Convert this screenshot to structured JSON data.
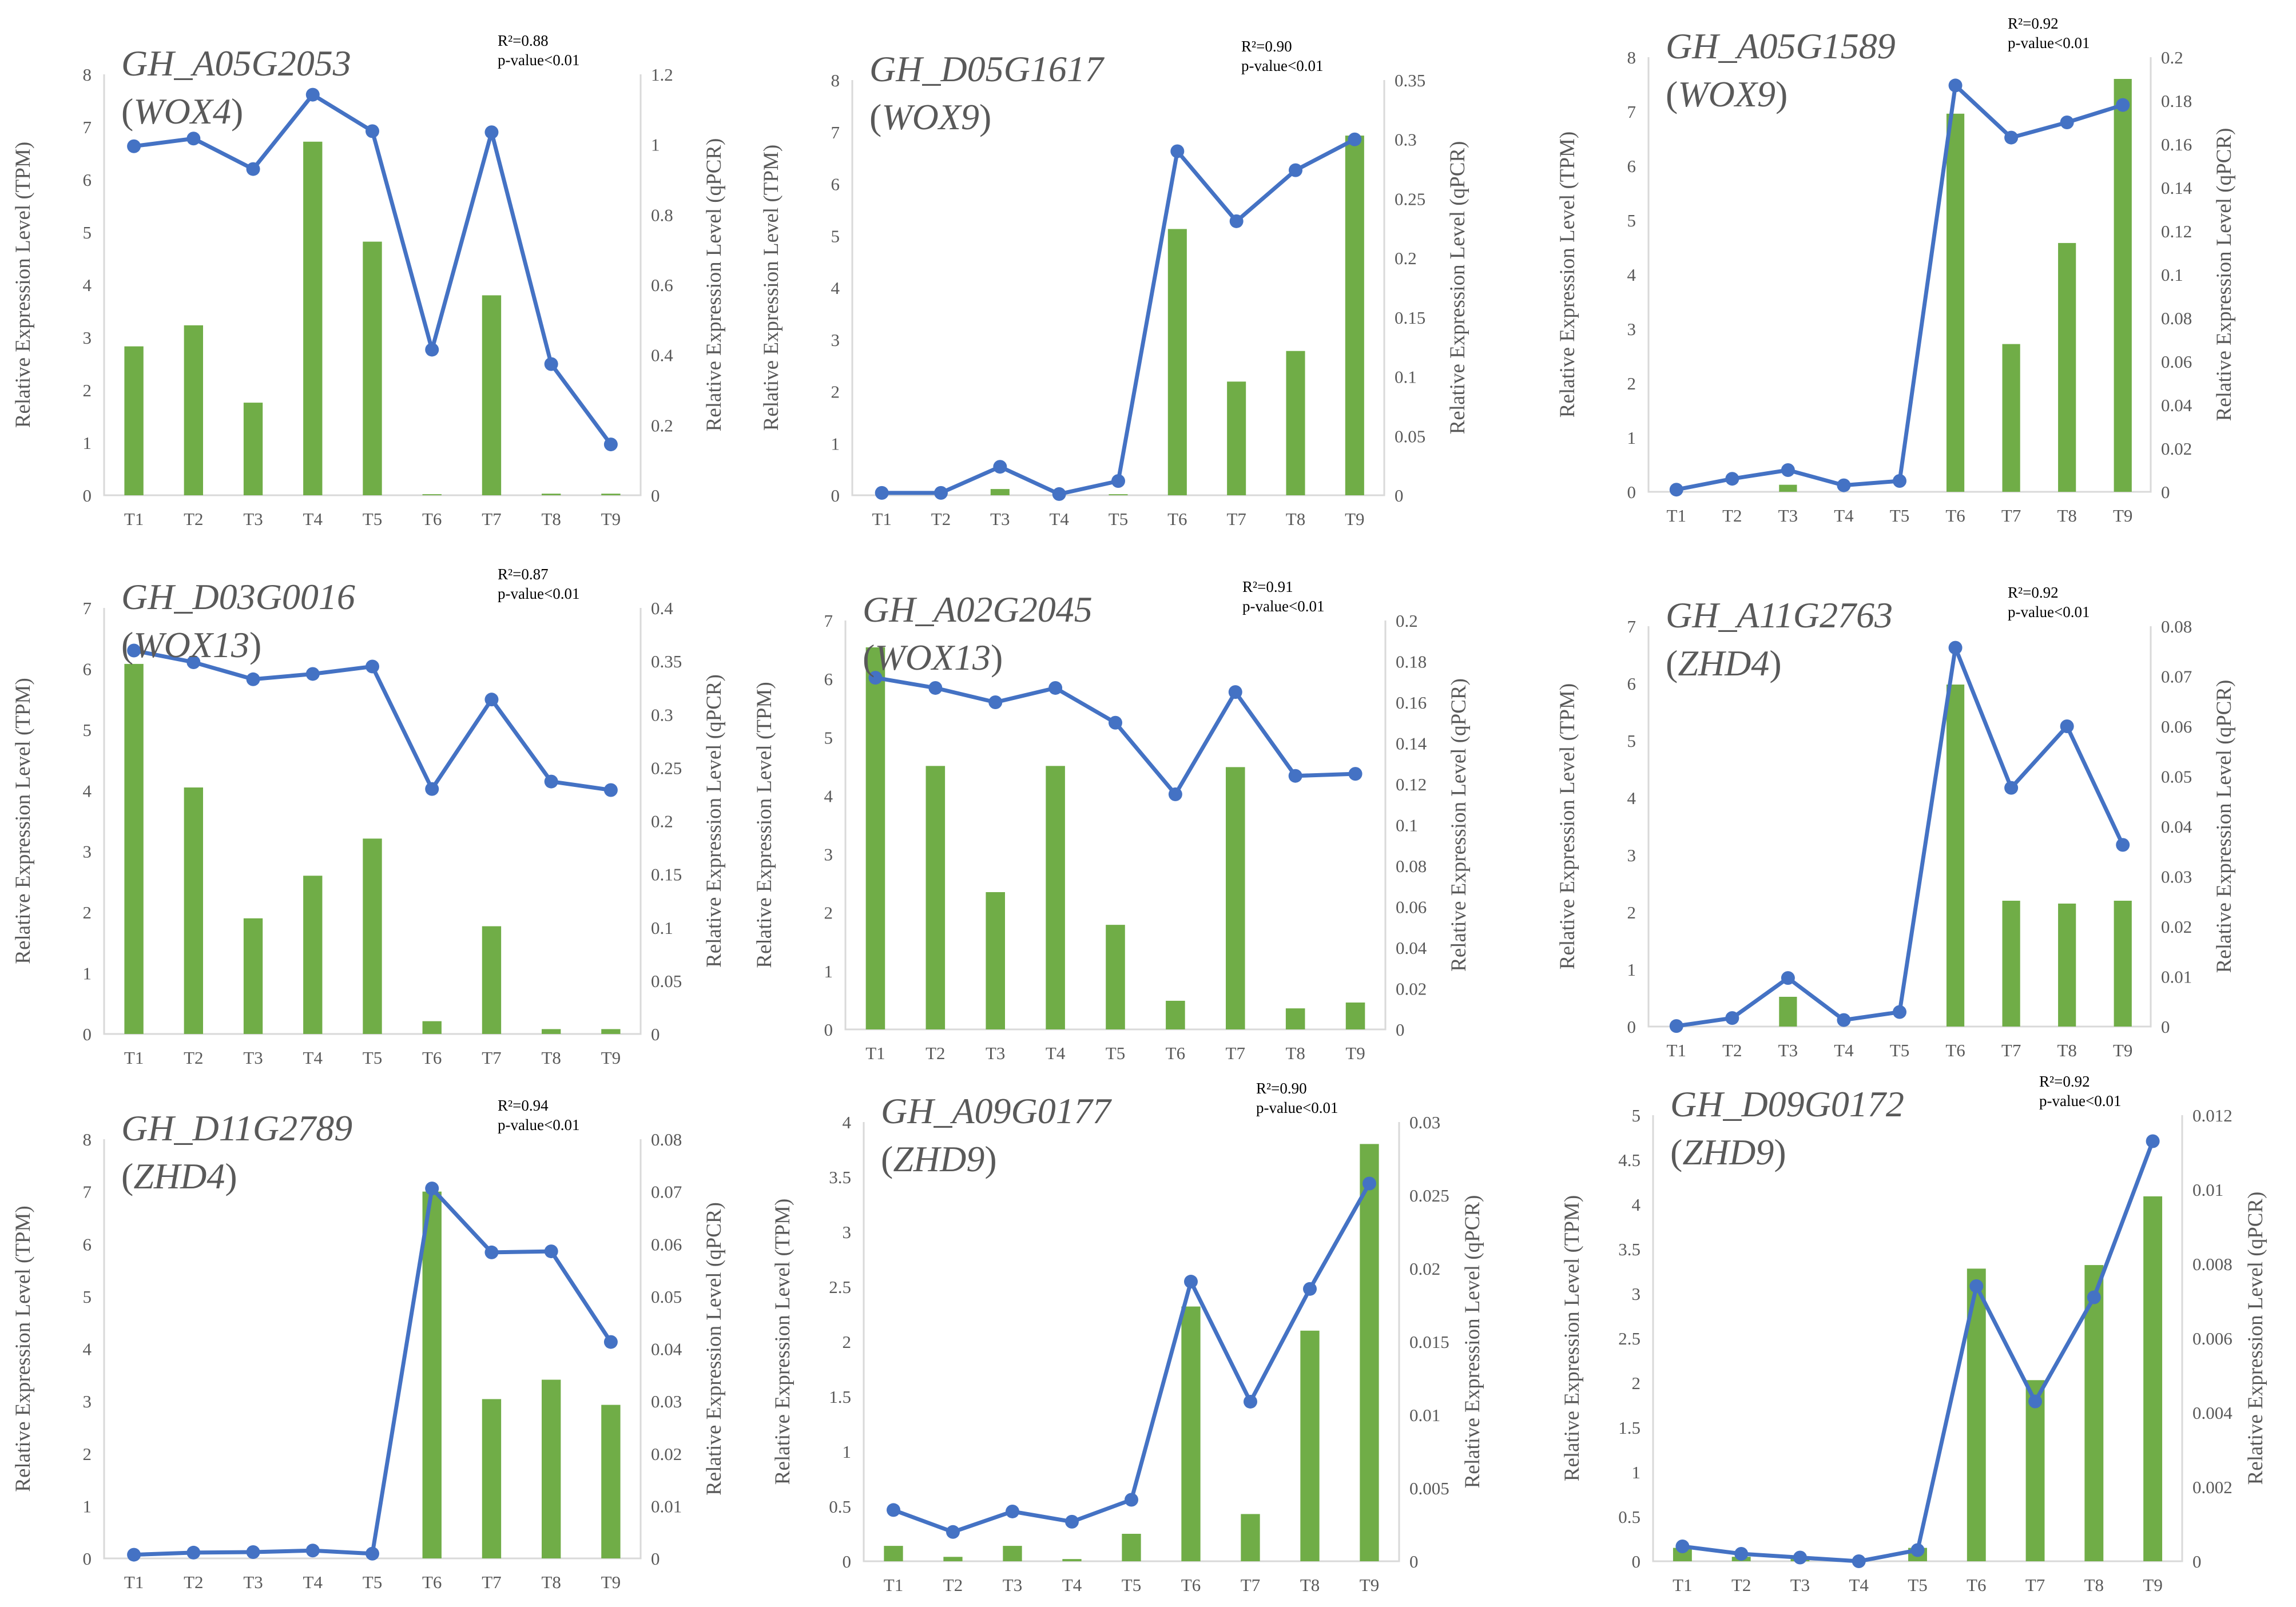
{
  "colors": {
    "bar": "#70ad47",
    "line": "#4472c4",
    "axis": "#d9d9d9",
    "text": "#595959"
  },
  "chart_data": [
    {
      "type": "bar+line",
      "gene": "GH_A05G2053",
      "alias": "WOX4",
      "alias_open": "(",
      "alias_close": ")",
      "r2_label": "R²=0.88",
      "p_label": "p-value<0.01",
      "categories": [
        "T1",
        "T2",
        "T3",
        "T4",
        "T5",
        "T6",
        "T7",
        "T8",
        "T9"
      ],
      "series": [
        {
          "name": "TPM",
          "axis": "left",
          "kind": "bar",
          "values": [
            2.83,
            3.23,
            1.76,
            6.72,
            4.82,
            0.02,
            3.8,
            0.03,
            0.03
          ]
        },
        {
          "name": "qPCR",
          "axis": "right",
          "kind": "line",
          "values": [
            0.995,
            1.017,
            0.93,
            1.142,
            1.038,
            0.415,
            1.035,
            0.374,
            0.145
          ]
        }
      ],
      "left_axis": {
        "label": "Relative Expression Level (TPM)",
        "min": 0,
        "max": 8,
        "ticks": [
          "0",
          "1",
          "2",
          "3",
          "4",
          "5",
          "6",
          "7",
          "8"
        ]
      },
      "right_axis": {
        "label": "Relative Expression Level (qPCR)",
        "min": 0,
        "max": 1.2,
        "ticks": [
          "0",
          "0.2",
          "0.4",
          "0.6",
          "0.8",
          "1",
          "1.2"
        ]
      }
    },
    {
      "type": "bar+line",
      "gene": "GH_D05G1617",
      "alias": "WOX9",
      "alias_open": "(",
      "alias_close": ")",
      "r2_label": "R²=0.90",
      "p_label": "p-value<0.01",
      "categories": [
        "T1",
        "T2",
        "T3",
        "T4",
        "T5",
        "T6",
        "T7",
        "T8",
        "T9"
      ],
      "series": [
        {
          "name": "TPM",
          "axis": "left",
          "kind": "bar",
          "values": [
            0,
            0,
            0.12,
            0,
            0.02,
            5.13,
            2.19,
            2.78,
            6.93
          ]
        },
        {
          "name": "qPCR",
          "axis": "right",
          "kind": "line",
          "values": [
            0.002,
            0.002,
            0.024,
            0.001,
            0.012,
            0.29,
            0.231,
            0.274,
            0.3
          ]
        }
      ],
      "left_axis": {
        "label": "Relative Expression Level (TPM)",
        "min": 0,
        "max": 8,
        "ticks": [
          "0",
          "1",
          "2",
          "3",
          "4",
          "5",
          "6",
          "7",
          "8"
        ]
      },
      "right_axis": {
        "label": "Relative Expression Level (qPCR)",
        "min": 0,
        "max": 0.35,
        "ticks": [
          "0",
          "0.05",
          "0.1",
          "0.15",
          "0.2",
          "0.25",
          "0.3",
          "0.35"
        ]
      }
    },
    {
      "type": "bar+line",
      "gene": "GH_A05G1589",
      "alias": "WOX9",
      "alias_open": "(",
      "alias_close": ")",
      "r2_label": "R²=0.92",
      "p_label": "p-value<0.01",
      "categories": [
        "T1",
        "T2",
        "T3",
        "T4",
        "T5",
        "T6",
        "T7",
        "T8",
        "T9"
      ],
      "series": [
        {
          "name": "TPM",
          "axis": "left",
          "kind": "bar",
          "values": [
            0,
            0,
            0.13,
            0,
            0,
            6.96,
            2.72,
            4.58,
            7.6
          ]
        },
        {
          "name": "qPCR",
          "axis": "right",
          "kind": "line",
          "values": [
            0.001,
            0.006,
            0.01,
            0.003,
            0.005,
            0.187,
            0.163,
            0.17,
            0.178
          ]
        }
      ],
      "left_axis": {
        "label": "Relative Expression Level (TPM)",
        "min": 0,
        "max": 8,
        "ticks": [
          "0",
          "1",
          "2",
          "3",
          "4",
          "5",
          "6",
          "7",
          "8"
        ]
      },
      "right_axis": {
        "label": "Relative Expression Level (qPCR)",
        "min": 0,
        "max": 0.2,
        "ticks": [
          "0",
          "0.02",
          "0.04",
          "0.06",
          "0.08",
          "0.1",
          "0.12",
          "0.14",
          "0.16",
          "0.18",
          "0.2"
        ]
      }
    },
    {
      "type": "bar+line",
      "gene": "GH_D03G0016",
      "alias": "WOX13",
      "alias_open": "(",
      "alias_close": ")",
      "r2_label": "R²=0.87",
      "p_label": "p-value<0.01",
      "categories": [
        "T1",
        "T2",
        "T3",
        "T4",
        "T5",
        "T6",
        "T7",
        "T8",
        "T9"
      ],
      "series": [
        {
          "name": "TPM",
          "axis": "left",
          "kind": "bar",
          "values": [
            6.08,
            4.05,
            1.9,
            2.6,
            3.21,
            0.21,
            1.77,
            0.08,
            0.08
          ]
        },
        {
          "name": "qPCR",
          "axis": "right",
          "kind": "line",
          "values": [
            0.36,
            0.349,
            0.333,
            0.338,
            0.345,
            0.23,
            0.314,
            0.237,
            0.229
          ]
        }
      ],
      "left_axis": {
        "label": "Relative Expression Level (TPM)",
        "min": 0,
        "max": 7,
        "ticks": [
          "0",
          "1",
          "2",
          "3",
          "4",
          "5",
          "6",
          "7"
        ]
      },
      "right_axis": {
        "label": "Relative Expression Level (qPCR)",
        "min": 0,
        "max": 0.4,
        "ticks": [
          "0",
          "0.05",
          "0.1",
          "0.15",
          "0.2",
          "0.25",
          "0.3",
          "0.35",
          "0.4"
        ]
      }
    },
    {
      "type": "bar+line",
      "gene": "GH_A02G2045",
      "alias": "WOX13",
      "alias_open": "(",
      "alias_close": ")",
      "r2_label": "R²=0.91",
      "p_label": "p-value<0.01",
      "categories": [
        "T1",
        "T2",
        "T3",
        "T4",
        "T5",
        "T6",
        "T7",
        "T8",
        "T9"
      ],
      "series": [
        {
          "name": "TPM",
          "axis": "left",
          "kind": "bar",
          "values": [
            6.54,
            4.51,
            2.35,
            4.51,
            1.79,
            0.49,
            4.49,
            0.36,
            0.46
          ]
        },
        {
          "name": "qPCR",
          "axis": "right",
          "kind": "line",
          "values": [
            0.172,
            0.167,
            0.16,
            0.167,
            0.15,
            0.115,
            0.165,
            0.124,
            0.125
          ]
        }
      ],
      "left_axis": {
        "label": "Relative Expression Level (TPM)",
        "min": 0,
        "max": 7,
        "ticks": [
          "0",
          "1",
          "2",
          "3",
          "4",
          "5",
          "6",
          "7"
        ]
      },
      "right_axis": {
        "label": "Relative Expression Level (qPCR)",
        "min": 0,
        "max": 0.2,
        "ticks": [
          "0",
          "0.02",
          "0.04",
          "0.06",
          "0.08",
          "0.1",
          "0.12",
          "0.14",
          "0.16",
          "0.18",
          "0.2"
        ]
      }
    },
    {
      "type": "bar+line",
      "gene": "GH_A11G2763",
      "alias": "ZHD4",
      "alias_open": "(",
      "alias_close": ")",
      "r2_label": "R²=0.92",
      "p_label": "p-value<0.01",
      "categories": [
        "T1",
        "T2",
        "T3",
        "T4",
        "T5",
        "T6",
        "T7",
        "T8",
        "T9"
      ],
      "series": [
        {
          "name": "TPM",
          "axis": "left",
          "kind": "bar",
          "values": [
            0,
            0,
            0.52,
            0,
            0,
            5.98,
            2.2,
            2.15,
            2.2
          ]
        },
        {
          "name": "qPCR",
          "axis": "right",
          "kind": "line",
          "values": [
            0.0001,
            0.0017,
            0.0097,
            0.0013,
            0.0029,
            0.0757,
            0.0477,
            0.06,
            0.0363
          ]
        }
      ],
      "left_axis": {
        "label": "Relative Expression Level (TPM)",
        "min": 0,
        "max": 7,
        "ticks": [
          "0",
          "1",
          "2",
          "3",
          "4",
          "5",
          "6",
          "7"
        ]
      },
      "right_axis": {
        "label": "Relative Expression Level (qPCR)",
        "min": 0,
        "max": 0.08,
        "ticks": [
          "0",
          "0.01",
          "0.02",
          "0.03",
          "0.04",
          "0.05",
          "0.06",
          "0.07",
          "0.08"
        ]
      }
    },
    {
      "type": "bar+line",
      "gene": "GH_D11G2789",
      "alias": "ZHD4",
      "alias_open": "(",
      "alias_close": ")",
      "r2_label": "R²=0.94",
      "p_label": "p-value<0.01",
      "categories": [
        "T1",
        "T2",
        "T3",
        "T4",
        "T5",
        "T6",
        "T7",
        "T8",
        "T9"
      ],
      "series": [
        {
          "name": "TPM",
          "axis": "left",
          "kind": "bar",
          "values": [
            0,
            0,
            0,
            0,
            0,
            7.0,
            3.04,
            3.41,
            2.93
          ]
        },
        {
          "name": "qPCR",
          "axis": "right",
          "kind": "line",
          "values": [
            0.0007,
            0.0011,
            0.0012,
            0.0015,
            0.0009,
            0.0706,
            0.0584,
            0.0586,
            0.0413
          ]
        }
      ],
      "left_axis": {
        "label": "Relative Expression Level (TPM)",
        "min": 0,
        "max": 8,
        "ticks": [
          "0",
          "1",
          "2",
          "3",
          "4",
          "5",
          "6",
          "7",
          "8"
        ]
      },
      "right_axis": {
        "label": "Relative Expression Level (qPCR)",
        "min": 0,
        "max": 0.08,
        "ticks": [
          "0",
          "0.01",
          "0.02",
          "0.03",
          "0.04",
          "0.05",
          "0.06",
          "0.07",
          "0.08"
        ]
      }
    },
    {
      "type": "bar+line",
      "gene": "GH_A09G0177",
      "alias": "ZHD9",
      "alias_open": "(",
      "alias_close": ")",
      "r2_label": "R²=0.90",
      "p_label": "p-value<0.01",
      "categories": [
        "T1",
        "T2",
        "T3",
        "T4",
        "T5",
        "T6",
        "T7",
        "T8",
        "T9"
      ],
      "series": [
        {
          "name": "TPM",
          "axis": "left",
          "kind": "bar",
          "values": [
            0.14,
            0.04,
            0.14,
            0.02,
            0.25,
            2.32,
            0.43,
            2.1,
            3.8
          ]
        },
        {
          "name": "qPCR",
          "axis": "right",
          "kind": "line",
          "values": [
            0.0035,
            0.002,
            0.0034,
            0.0027,
            0.0042,
            0.0191,
            0.0109,
            0.0186,
            0.0258
          ]
        }
      ],
      "left_axis": {
        "label": "Relative Expression Level (TPM)",
        "min": 0,
        "max": 4,
        "ticks": [
          "0",
          "0.5",
          "1",
          "1.5",
          "2",
          "2.5",
          "3",
          "3.5",
          "4"
        ]
      },
      "right_axis": {
        "label": "Relative Expression Level (qPCR)",
        "min": 0,
        "max": 0.03,
        "ticks": [
          "0",
          "0.005",
          "0.01",
          "0.015",
          "0.02",
          "0.025",
          "0.03"
        ]
      }
    },
    {
      "type": "bar+line",
      "gene": "GH_D09G0172",
      "alias": "ZHD9",
      "alias_open": "(",
      "alias_close": ")",
      "r2_label": "R²=0.92",
      "p_label": "p-value<0.01",
      "categories": [
        "T1",
        "T2",
        "T3",
        "T4",
        "T5",
        "T6",
        "T7",
        "T8",
        "T9"
      ],
      "series": [
        {
          "name": "TPM",
          "axis": "left",
          "kind": "bar",
          "values": [
            0.15,
            0.05,
            0.03,
            0,
            0.15,
            3.28,
            2.03,
            3.32,
            4.09
          ]
        },
        {
          "name": "qPCR",
          "axis": "right",
          "kind": "line",
          "values": [
            0.0004,
            0.0002,
            0.0001,
            0.0,
            0.0003,
            0.0074,
            0.0043,
            0.0071,
            0.0113
          ]
        }
      ],
      "left_axis": {
        "label": "Relative Expression Level (TPM)",
        "min": 0,
        "max": 5,
        "ticks": [
          "0",
          "0.5",
          "1",
          "1.5",
          "2",
          "2.5",
          "3",
          "3.5",
          "4",
          "4.5",
          "5"
        ]
      },
      "right_axis": {
        "label": "Relative Expression Level (qPCR)",
        "min": 0,
        "max": 0.012,
        "ticks": [
          "0",
          "0.002",
          "0.004",
          "0.006",
          "0.008",
          "0.01",
          "0.012"
        ]
      }
    }
  ]
}
